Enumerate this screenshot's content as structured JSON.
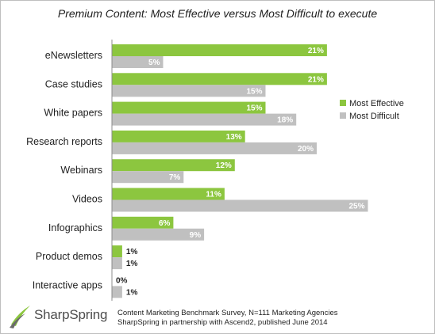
{
  "colors": {
    "effective": "#8cc63f",
    "difficult": "#c0c0c0",
    "axis": "#8c8c8c",
    "effective_label": "#ffffff",
    "difficult_label": "#ffffff",
    "outside_label": "#1f1f1f"
  },
  "chart_data": {
    "type": "bar",
    "orientation": "horizontal",
    "title": "Premium Content: Most Effective versus Most Difficult to execute",
    "categories": [
      "eNewsletters",
      "Case studies",
      "White papers",
      "Research reports",
      "Webinars",
      "Videos",
      "Infographics",
      "Product demos",
      "Interactive apps"
    ],
    "series": [
      {
        "name": "Most Effective",
        "values": [
          21,
          21,
          15,
          13,
          12,
          11,
          6,
          1,
          0
        ],
        "labels": [
          "21%",
          "21%",
          "15%",
          "13%",
          "12%",
          "11%",
          "6%",
          "1%",
          "0%"
        ]
      },
      {
        "name": "Most Difficult",
        "values": [
          5,
          15,
          18,
          20,
          7,
          25,
          9,
          1,
          1
        ],
        "labels": [
          "5%",
          "15%",
          "18%",
          "20%",
          "7%",
          "25%",
          "9%",
          "1%",
          "1%"
        ]
      }
    ],
    "xlim": [
      0,
      25
    ],
    "grid": false,
    "legend_position": "right"
  },
  "footer": {
    "logo_text": "SharpSpring",
    "source_line1": "Content Marketing Benchmark Survey, N=111 Marketing Agencies",
    "source_line2": "SharpSpring in partnership with Ascend2, published June 2014"
  }
}
